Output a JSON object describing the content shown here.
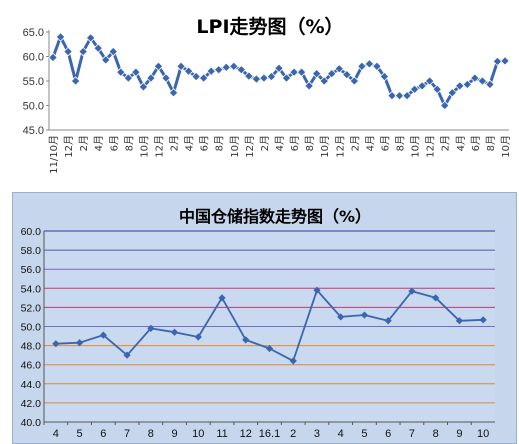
{
  "chart_data": [
    {
      "type": "line",
      "title": "LPI走势图（%）",
      "ylim": [
        45,
        65
      ],
      "yticks": [
        "45.0",
        "50.0",
        "55.0",
        "60.0",
        "65.0"
      ],
      "x_tick_labels": [
        "11/10月",
        "12月",
        "2月",
        "4月",
        "6月",
        "8月",
        "10月",
        "12月",
        "2月",
        "4月",
        "6月",
        "8月",
        "10月",
        "12月",
        "2月",
        "4月",
        "6月",
        "8月",
        "10月",
        "12月",
        "2月",
        "4月",
        "6月",
        "8月",
        "10月",
        "12月",
        "2月",
        "4月",
        "6月",
        "8月",
        "10月"
      ],
      "grid": false,
      "line_color": "#3a66b0",
      "series": [
        {
          "values": [
            59.8,
            64.0,
            61.0,
            55.0,
            61.0,
            63.8,
            61.7,
            59.3,
            61.0,
            56.8,
            55.6,
            56.8,
            53.8,
            55.6,
            58.0,
            55.6,
            52.6,
            58.0,
            57.0,
            55.9,
            55.6,
            57.0,
            57.3,
            57.8,
            58.0,
            57.3,
            56.0,
            55.4,
            55.6,
            55.9,
            57.6,
            55.6,
            56.8,
            56.8,
            54.0,
            56.5,
            55.0,
            56.5,
            57.5,
            56.3,
            55.0,
            58.0,
            58.5,
            58.0,
            55.9,
            52.0,
            52.0,
            52.0,
            53.3,
            54.0,
            55.0,
            53.3,
            50.0,
            52.6,
            54.0,
            54.3,
            55.6,
            55.0,
            54.3,
            59.0,
            59.1
          ]
        }
      ]
    },
    {
      "type": "line",
      "title": "中国仓储指数走势图（%）",
      "categories": [
        "4",
        "5",
        "6",
        "7",
        "8",
        "9",
        "10",
        "11",
        "12",
        "16.1",
        "2",
        "3",
        "4",
        "5",
        "6",
        "7",
        "8",
        "9",
        "10"
      ],
      "ylim": [
        40,
        60
      ],
      "yticks": [
        "40.0",
        "42.0",
        "44.0",
        "46.0",
        "48.0",
        "50.0",
        "52.0",
        "54.0",
        "56.0",
        "58.0",
        "60.0"
      ],
      "grid": true,
      "line_color": "#3a66b0",
      "series": [
        {
          "values": [
            48.2,
            48.3,
            49.1,
            47.0,
            49.8,
            49.4,
            48.9,
            53.0,
            48.6,
            47.7,
            46.4,
            53.8,
            51.0,
            51.2,
            50.6,
            53.7,
            53.0,
            50.6,
            50.7
          ]
        }
      ]
    }
  ]
}
